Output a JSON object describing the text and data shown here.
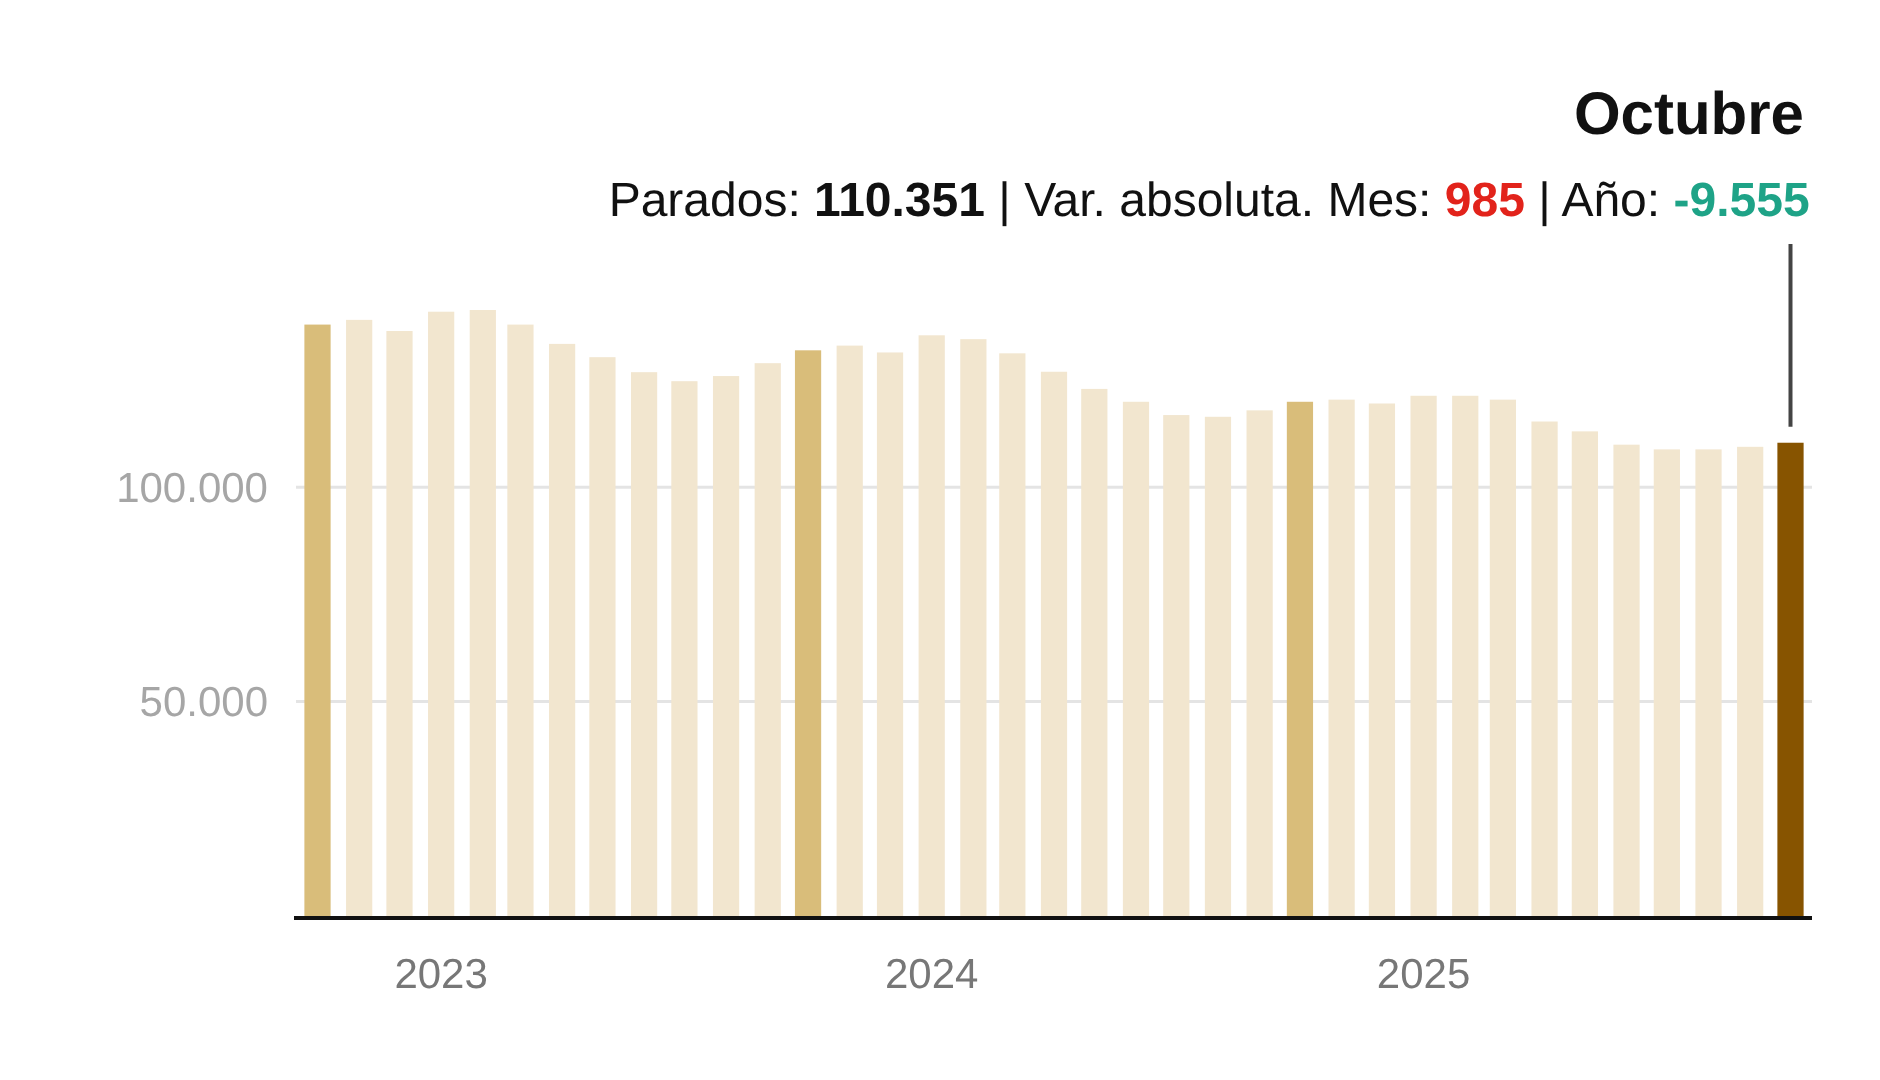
{
  "chart_data": {
    "type": "bar",
    "title": "Octubre",
    "annotations": [
      {
        "text": "Parados: 110.351 | Var. absoluta. Mes: 985 | Año: -9.555",
        "x": "2025-10",
        "y": 110351
      }
    ],
    "x": [
      "2022-10",
      "2022-11",
      "2022-12",
      "2023-01",
      "2023-02",
      "2023-03",
      "2023-04",
      "2023-05",
      "2023-06",
      "2023-07",
      "2023-08",
      "2023-09",
      "2023-10",
      "2023-11",
      "2023-12",
      "2024-01",
      "2024-02",
      "2024-03",
      "2024-04",
      "2024-05",
      "2024-06",
      "2024-07",
      "2024-08",
      "2024-09",
      "2024-10",
      "2024-11",
      "2024-12",
      "2025-01",
      "2025-02",
      "2025-03",
      "2025-04",
      "2025-05",
      "2025-06",
      "2025-07",
      "2025-08",
      "2025-09",
      "2025-10"
    ],
    "values": [
      137900,
      139000,
      136400,
      140900,
      141300,
      137900,
      133400,
      130300,
      126800,
      124700,
      125900,
      128900,
      131900,
      133000,
      131400,
      135400,
      134500,
      131200,
      126900,
      122900,
      119900,
      116800,
      116400,
      117900,
      119900,
      120400,
      119500,
      121300,
      121300,
      120400,
      115300,
      113000,
      109900,
      108800,
      108800,
      109400,
      110351
    ],
    "colors": [
      "#d9bd7a",
      "#f2e6cf",
      "#f2e6cf",
      "#f2e6cf",
      "#f2e6cf",
      "#f2e6cf",
      "#f2e6cf",
      "#f2e6cf",
      "#f2e6cf",
      "#f2e6cf",
      "#f2e6cf",
      "#f2e6cf",
      "#d9bd7a",
      "#f2e6cf",
      "#f2e6cf",
      "#f2e6cf",
      "#f2e6cf",
      "#f2e6cf",
      "#f2e6cf",
      "#f2e6cf",
      "#f2e6cf",
      "#f2e6cf",
      "#f2e6cf",
      "#f2e6cf",
      "#d9bd7a",
      "#f2e6cf",
      "#f2e6cf",
      "#f2e6cf",
      "#f2e6cf",
      "#f2e6cf",
      "#f2e6cf",
      "#f2e6cf",
      "#f2e6cf",
      "#f2e6cf",
      "#f2e6cf",
      "#f2e6cf",
      "#875400"
    ],
    "xlim": [
      "2022-09-15",
      "2025-10-17"
    ],
    "xticks": [
      "2023",
      "2024",
      "2025"
    ],
    "ylim": [
      0,
      141300
    ],
    "yticks": [
      {
        "value": 50000,
        "label": "50.000"
      },
      {
        "value": 100000,
        "label": "100.000"
      }
    ],
    "grid": "y"
  }
}
